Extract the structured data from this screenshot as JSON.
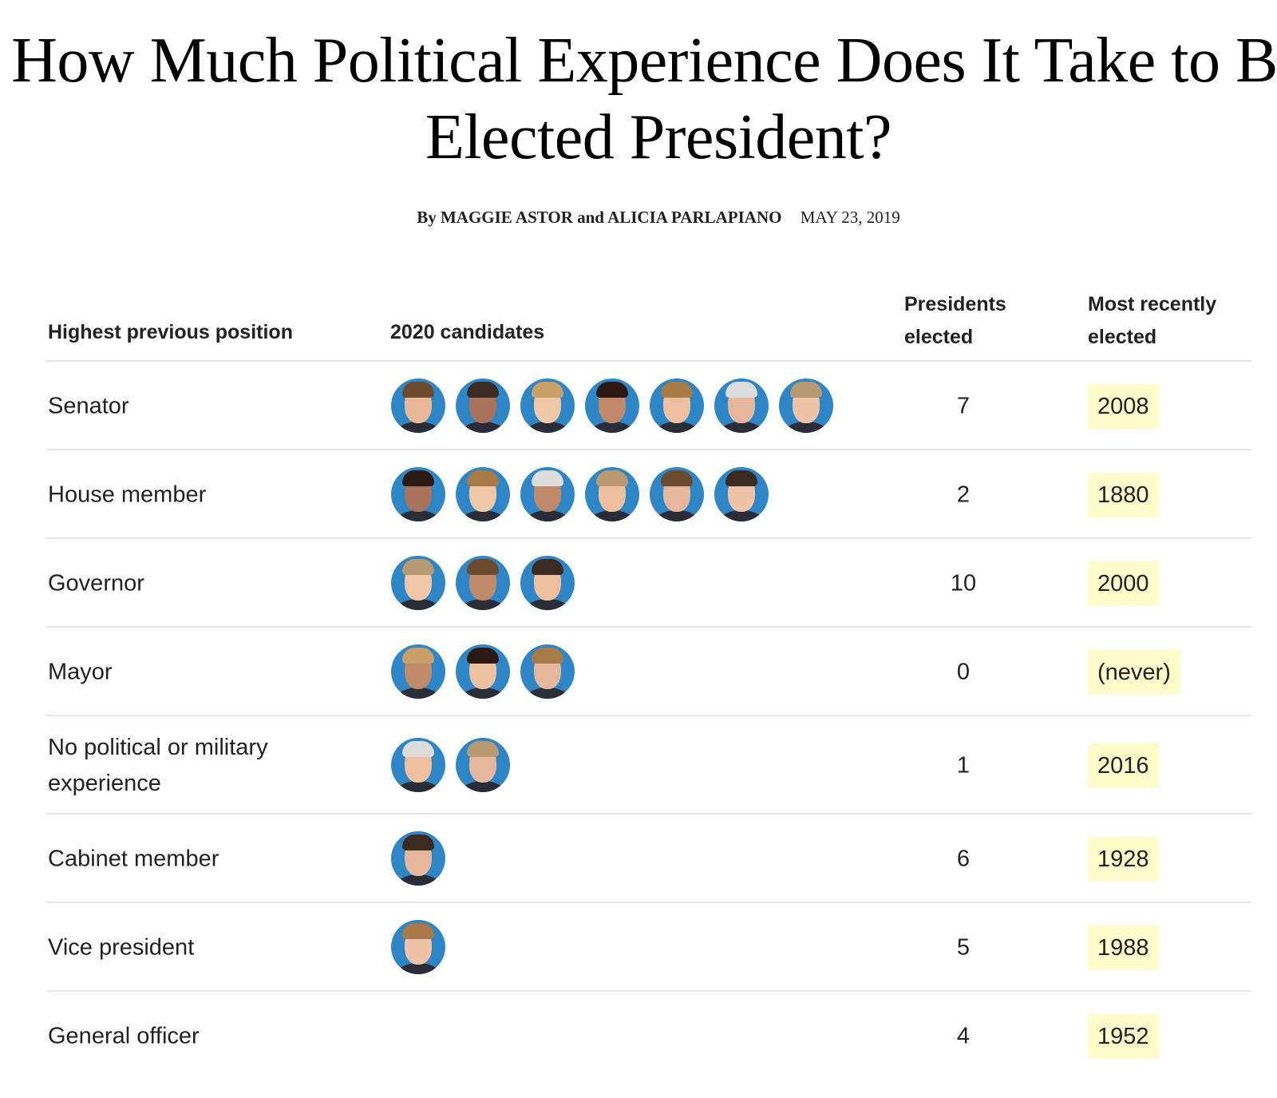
{
  "title": "How Much Political Experience Does It Take to Be Elected President?",
  "byline": {
    "authors_prefix": "By",
    "authors": "MAGGIE ASTOR and ALICIA PARLAPIANO",
    "date": "MAY 23, 2019"
  },
  "columns": {
    "position": "Highest previous position",
    "candidates": "2020 candidates",
    "presidents": "Presidents elected",
    "recent": "Most recently elected"
  },
  "colors": {
    "avatar_background": "#2f86c6",
    "highlight": "#fffccc"
  },
  "rows": [
    {
      "position": "Senator",
      "candidates": 7,
      "presidents": "7",
      "recent": "2008"
    },
    {
      "position": "House member",
      "candidates": 6,
      "presidents": "2",
      "recent": "1880"
    },
    {
      "position": "Governor",
      "candidates": 3,
      "presidents": "10",
      "recent": "2000"
    },
    {
      "position": "Mayor",
      "candidates": 3,
      "presidents": "0",
      "recent": "(never)"
    },
    {
      "position": "No political or military experience",
      "candidates": 2,
      "presidents": "1",
      "recent": "2016"
    },
    {
      "position": "Cabinet member",
      "candidates": 1,
      "presidents": "6",
      "recent": "1928"
    },
    {
      "position": "Vice president",
      "candidates": 1,
      "presidents": "5",
      "recent": "1988"
    },
    {
      "position": "General officer",
      "candidates": 0,
      "presidents": "4",
      "recent": "1952"
    }
  ]
}
